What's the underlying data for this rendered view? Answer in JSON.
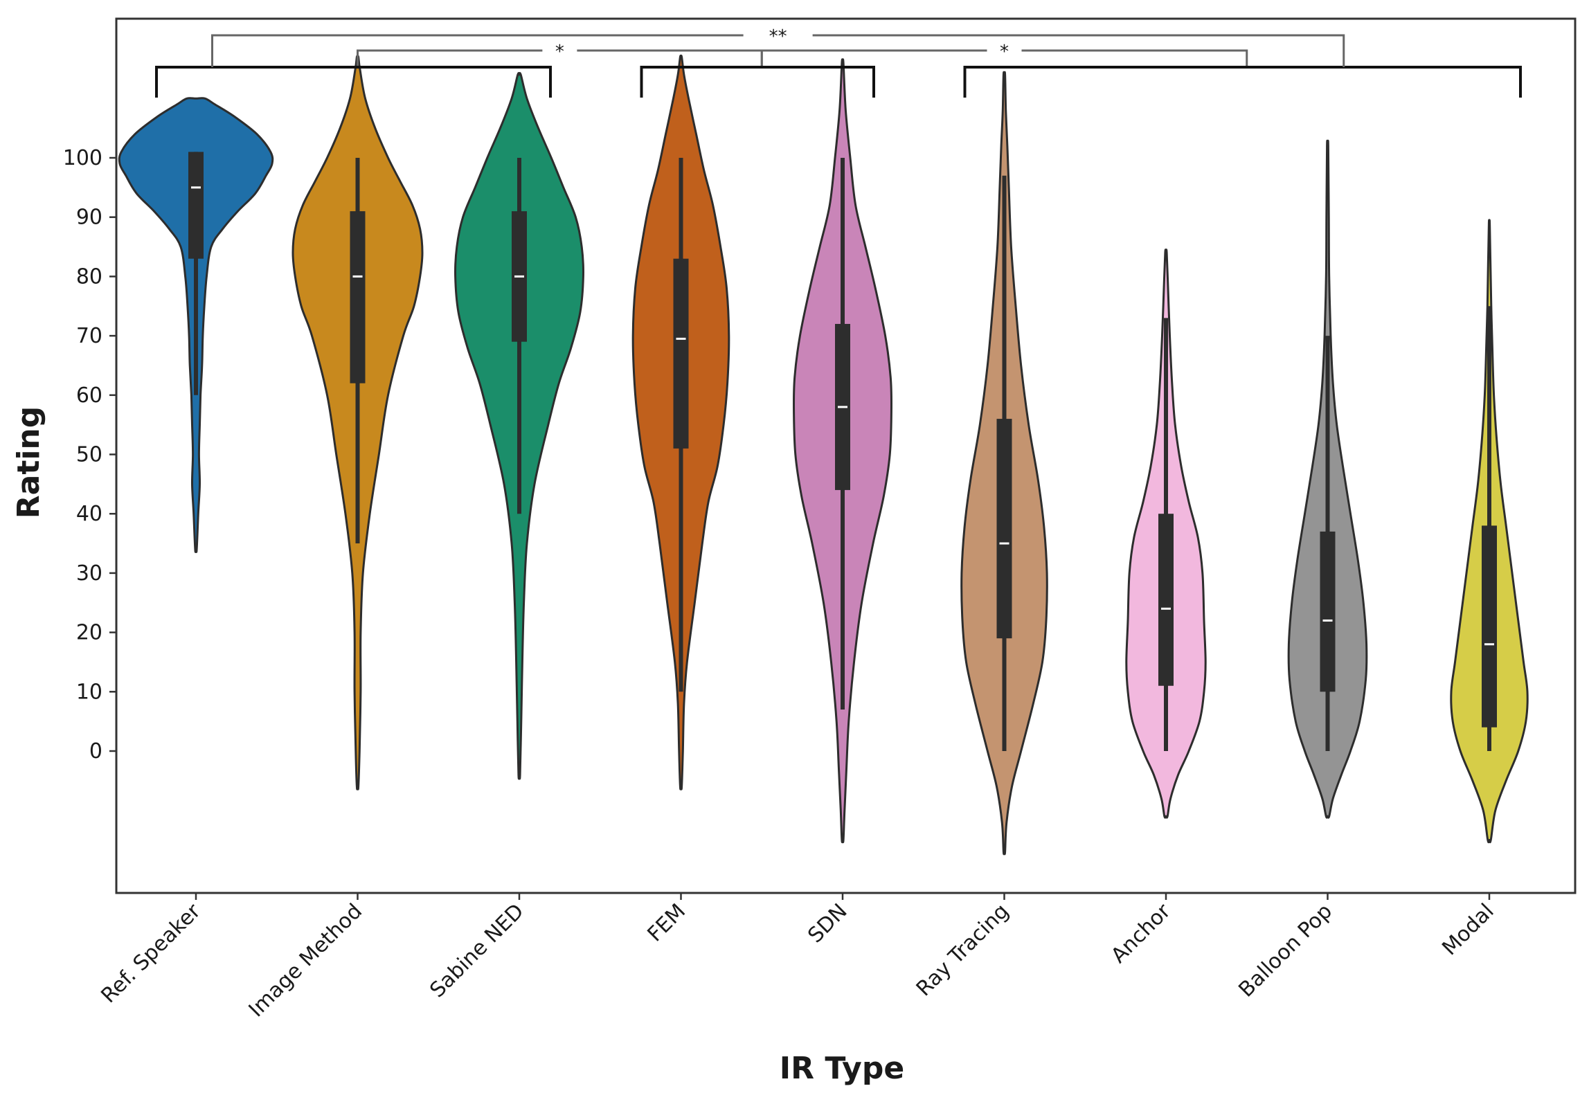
{
  "chart_data": {
    "type": "violin",
    "title": "",
    "xlabel": "IR Type",
    "ylabel": "Rating",
    "yticks": [
      0,
      10,
      20,
      30,
      40,
      50,
      60,
      70,
      80,
      90,
      100
    ],
    "ylim": [
      -23,
      123
    ],
    "grid": false,
    "categories": [
      "Ref. Speaker",
      "Image Method",
      "Sabine NED",
      "FEM",
      "SDN",
      "Ray Tracing",
      "Anchor",
      "Balloon Pop",
      "Modal"
    ],
    "colors": [
      "#1f6fa8",
      "#c8891e",
      "#1b8e6a",
      "#c0601c",
      "#c985b8",
      "#c49470",
      "#f2b8de",
      "#949494",
      "#d6cd48"
    ],
    "series": [
      {
        "category": "Ref. Speaker",
        "median": 95,
        "q1": 83,
        "q3": 101,
        "whisker_low": 60,
        "whisker_high": 101,
        "kde_min": 34,
        "kde_max": 110,
        "density": [
          [
            34,
            0.01
          ],
          [
            40,
            0.03
          ],
          [
            45,
            0.05
          ],
          [
            50,
            0.04
          ],
          [
            55,
            0.05
          ],
          [
            60,
            0.06
          ],
          [
            65,
            0.08
          ],
          [
            70,
            0.09
          ],
          [
            75,
            0.11
          ],
          [
            80,
            0.14
          ],
          [
            85,
            0.2
          ],
          [
            88,
            0.35
          ],
          [
            91,
            0.55
          ],
          [
            94,
            0.78
          ],
          [
            97,
            0.92
          ],
          [
            99,
            1.0
          ],
          [
            101,
            0.98
          ],
          [
            104,
            0.8
          ],
          [
            107,
            0.5
          ],
          [
            109,
            0.25
          ],
          [
            110,
            0.12
          ]
        ]
      },
      {
        "category": "Image Method",
        "median": 80,
        "q1": 62,
        "q3": 91,
        "whisker_low": 35,
        "whisker_high": 100,
        "kde_min": -6,
        "kde_max": 117,
        "density": [
          [
            -6,
            0.01
          ],
          [
            0,
            0.025
          ],
          [
            10,
            0.04
          ],
          [
            20,
            0.04
          ],
          [
            30,
            0.07
          ],
          [
            40,
            0.16
          ],
          [
            50,
            0.28
          ],
          [
            60,
            0.4
          ],
          [
            70,
            0.6
          ],
          [
            75,
            0.74
          ],
          [
            80,
            0.82
          ],
          [
            84,
            0.85
          ],
          [
            88,
            0.82
          ],
          [
            92,
            0.72
          ],
          [
            96,
            0.56
          ],
          [
            100,
            0.4
          ],
          [
            105,
            0.23
          ],
          [
            110,
            0.1
          ],
          [
            115,
            0.03
          ],
          [
            117,
            0.01
          ]
        ]
      },
      {
        "category": "Sabine NED",
        "median": 80,
        "q1": 69,
        "q3": 91,
        "whisker_low": 40,
        "whisker_high": 100,
        "kde_min": -4,
        "kde_max": 114,
        "density": [
          [
            -4,
            0.01
          ],
          [
            5,
            0.025
          ],
          [
            15,
            0.04
          ],
          [
            25,
            0.06
          ],
          [
            35,
            0.1
          ],
          [
            45,
            0.2
          ],
          [
            55,
            0.38
          ],
          [
            62,
            0.52
          ],
          [
            68,
            0.68
          ],
          [
            74,
            0.8
          ],
          [
            80,
            0.84
          ],
          [
            85,
            0.82
          ],
          [
            90,
            0.74
          ],
          [
            95,
            0.58
          ],
          [
            100,
            0.42
          ],
          [
            105,
            0.25
          ],
          [
            110,
            0.1
          ],
          [
            114,
            0.02
          ]
        ]
      },
      {
        "category": "FEM",
        "median": 69.5,
        "q1": 51,
        "q3": 83,
        "whisker_low": 10,
        "whisker_high": 100,
        "kde_min": -6,
        "kde_max": 117,
        "density": [
          [
            -6,
            0.01
          ],
          [
            0,
            0.025
          ],
          [
            8,
            0.04
          ],
          [
            15,
            0.08
          ],
          [
            25,
            0.18
          ],
          [
            35,
            0.28
          ],
          [
            42,
            0.36
          ],
          [
            48,
            0.48
          ],
          [
            55,
            0.56
          ],
          [
            62,
            0.61
          ],
          [
            70,
            0.63
          ],
          [
            78,
            0.6
          ],
          [
            85,
            0.52
          ],
          [
            92,
            0.42
          ],
          [
            98,
            0.3
          ],
          [
            104,
            0.2
          ],
          [
            110,
            0.1
          ],
          [
            114,
            0.04
          ],
          [
            117,
            0.01
          ]
        ]
      },
      {
        "category": "SDN",
        "median": 58,
        "q1": 44,
        "q3": 72,
        "whisker_low": 7,
        "whisker_high": 100,
        "kde_min": -15,
        "kde_max": 116,
        "density": [
          [
            -15,
            0.01
          ],
          [
            -10,
            0.025
          ],
          [
            -3,
            0.05
          ],
          [
            5,
            0.08
          ],
          [
            15,
            0.15
          ],
          [
            25,
            0.25
          ],
          [
            35,
            0.4
          ],
          [
            43,
            0.54
          ],
          [
            50,
            0.62
          ],
          [
            57,
            0.64
          ],
          [
            63,
            0.63
          ],
          [
            70,
            0.56
          ],
          [
            78,
            0.43
          ],
          [
            85,
            0.3
          ],
          [
            92,
            0.17
          ],
          [
            100,
            0.1
          ],
          [
            108,
            0.04
          ],
          [
            116,
            0.01
          ]
        ]
      },
      {
        "category": "Ray Tracing",
        "median": 35,
        "q1": 19,
        "q3": 56,
        "whisker_low": 0,
        "whisker_high": 97,
        "kde_min": -17,
        "kde_max": 114,
        "density": [
          [
            -17,
            0.01
          ],
          [
            -12,
            0.03
          ],
          [
            -6,
            0.1
          ],
          [
            0,
            0.22
          ],
          [
            8,
            0.38
          ],
          [
            15,
            0.5
          ],
          [
            22,
            0.55
          ],
          [
            30,
            0.56
          ],
          [
            38,
            0.52
          ],
          [
            46,
            0.44
          ],
          [
            55,
            0.32
          ],
          [
            65,
            0.22
          ],
          [
            75,
            0.15
          ],
          [
            85,
            0.09
          ],
          [
            95,
            0.06
          ],
          [
            102,
            0.04
          ],
          [
            108,
            0.02
          ],
          [
            114,
            0.01
          ]
        ]
      },
      {
        "category": "Anchor",
        "median": 24,
        "q1": 11,
        "q3": 40,
        "whisker_low": 0,
        "whisker_high": 73,
        "kde_min": -11,
        "kde_max": 84,
        "density": [
          [
            -11,
            0.02
          ],
          [
            -8,
            0.06
          ],
          [
            -4,
            0.16
          ],
          [
            0,
            0.3
          ],
          [
            5,
            0.44
          ],
          [
            10,
            0.5
          ],
          [
            15,
            0.52
          ],
          [
            22,
            0.5
          ],
          [
            30,
            0.48
          ],
          [
            36,
            0.42
          ],
          [
            42,
            0.3
          ],
          [
            48,
            0.2
          ],
          [
            55,
            0.12
          ],
          [
            62,
            0.08
          ],
          [
            70,
            0.05
          ],
          [
            77,
            0.03
          ],
          [
            84,
            0.01
          ]
        ]
      },
      {
        "category": "Balloon Pop",
        "median": 22,
        "q1": 10,
        "q3": 37,
        "whisker_low": 0,
        "whisker_high": 70,
        "kde_min": -11,
        "kde_max": 102,
        "density": [
          [
            -11,
            0.02
          ],
          [
            -8,
            0.07
          ],
          [
            -4,
            0.18
          ],
          [
            0,
            0.3
          ],
          [
            5,
            0.42
          ],
          [
            12,
            0.5
          ],
          [
            18,
            0.51
          ],
          [
            25,
            0.47
          ],
          [
            32,
            0.4
          ],
          [
            40,
            0.3
          ],
          [
            48,
            0.2
          ],
          [
            55,
            0.12
          ],
          [
            62,
            0.07
          ],
          [
            70,
            0.04
          ],
          [
            80,
            0.02
          ],
          [
            90,
            0.015
          ],
          [
            102,
            0.008
          ]
        ]
      },
      {
        "category": "Modal",
        "median": 18,
        "q1": 4,
        "q3": 38,
        "whisker_low": 0,
        "whisker_high": 75,
        "kde_min": -15,
        "kde_max": 89,
        "density": [
          [
            -15,
            0.02
          ],
          [
            -10,
            0.08
          ],
          [
            -5,
            0.22
          ],
          [
            0,
            0.38
          ],
          [
            5,
            0.48
          ],
          [
            10,
            0.5
          ],
          [
            15,
            0.45
          ],
          [
            22,
            0.38
          ],
          [
            30,
            0.3
          ],
          [
            38,
            0.22
          ],
          [
            45,
            0.15
          ],
          [
            52,
            0.1
          ],
          [
            60,
            0.06
          ],
          [
            68,
            0.04
          ],
          [
            75,
            0.025
          ],
          [
            82,
            0.015
          ],
          [
            89,
            0.005
          ]
        ]
      }
    ],
    "annotations": [
      {
        "type": "significance_bracket",
        "groups": [
          "Ref. Speaker",
          "Image Method",
          "Sabine NED"
        ],
        "tier": 0
      },
      {
        "type": "significance_bracket",
        "groups": [
          "FEM",
          "SDN"
        ],
        "tier": 0
      },
      {
        "type": "significance_bracket",
        "groups": [
          "Ray Tracing",
          "Anchor",
          "Balloon Pop",
          "Modal"
        ],
        "tier": 0
      },
      {
        "type": "significance_bracket",
        "label": "*",
        "from": [
          "Ref. Speaker",
          "Image Method",
          "Sabine NED"
        ],
        "to": [
          "FEM",
          "SDN"
        ],
        "tier": 1
      },
      {
        "type": "significance_bracket",
        "label": "*",
        "from": [
          "FEM",
          "SDN"
        ],
        "to": [
          "Ray Tracing",
          "Anchor",
          "Balloon Pop",
          "Modal"
        ],
        "tier": 1
      },
      {
        "type": "significance_bracket",
        "label": "**",
        "from": [
          "Ref. Speaker",
          "Image Method",
          "Sabine NED"
        ],
        "to": [
          "Ray Tracing",
          "Anchor",
          "Balloon Pop",
          "Modal"
        ],
        "tier": 2
      }
    ]
  }
}
